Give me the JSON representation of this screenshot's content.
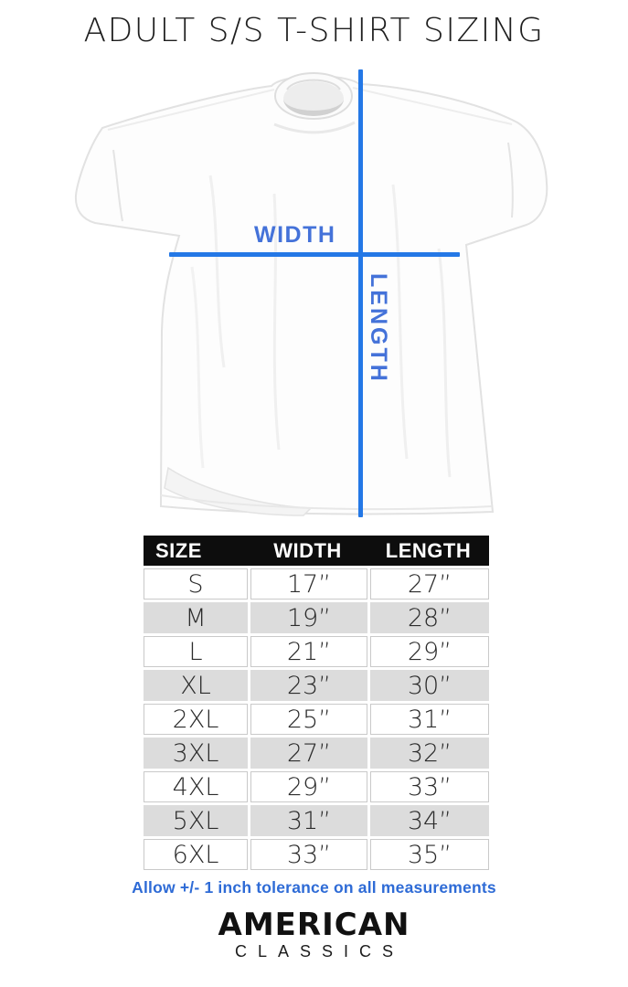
{
  "page": {
    "title": "ADULT S/S T-SHIRT SIZING"
  },
  "diagram": {
    "width_label": "WIDTH",
    "length_label": "LENGTH",
    "line_color": "#2478e6",
    "label_color": "#4472d9"
  },
  "size_table": {
    "columns": [
      "SIZE",
      "WIDTH",
      "LENGTH"
    ],
    "header_bg": "#0d0d0d",
    "alt_row_bg": "#dcdcdc",
    "rows": [
      [
        "S",
        "17”",
        "27”"
      ],
      [
        "M",
        "19”",
        "28”"
      ],
      [
        "L",
        "21”",
        "29”"
      ],
      [
        "XL",
        "23”",
        "30”"
      ],
      [
        "2XL",
        "25”",
        "31”"
      ],
      [
        "3XL",
        "27”",
        "32”"
      ],
      [
        "4XL",
        "29”",
        "33”"
      ],
      [
        "5XL",
        "31”",
        "34”"
      ],
      [
        "6XL",
        "33”",
        "35”"
      ]
    ]
  },
  "tolerance_note": "Allow +/- 1 inch tolerance on all measurements",
  "brand": {
    "name": "AMERICAN",
    "subname": "CLASSICS"
  }
}
